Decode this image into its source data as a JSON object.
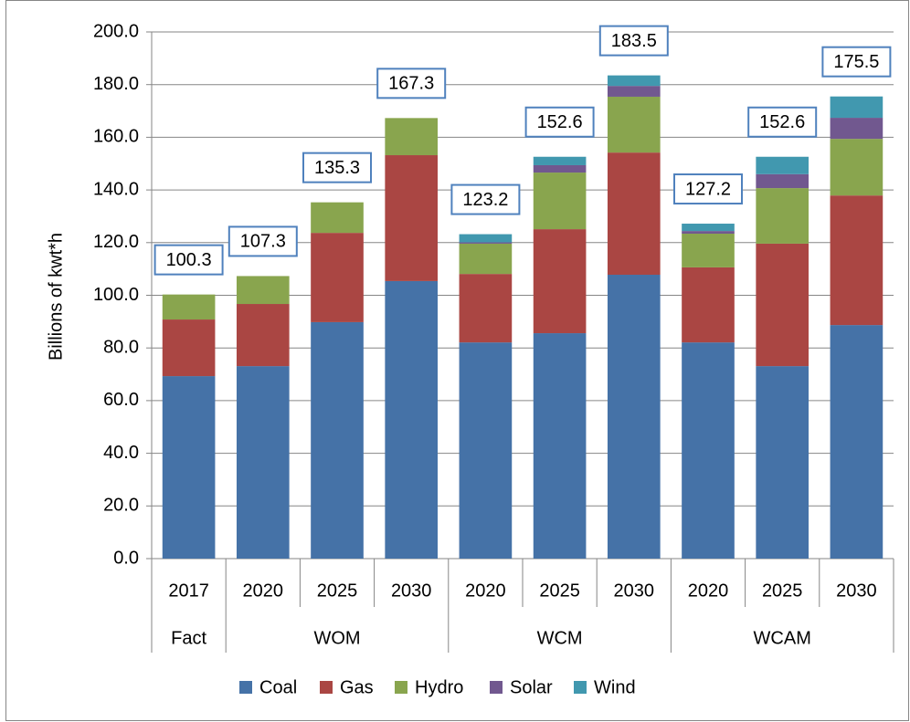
{
  "chart_data": {
    "type": "bar",
    "stacked": true,
    "y_label": "Billions of kwt*h",
    "groups": [
      {
        "name": "Fact",
        "categories": [
          "2017"
        ]
      },
      {
        "name": "WOM",
        "categories": [
          "2020",
          "2025",
          "2030"
        ]
      },
      {
        "name": "WCM",
        "categories": [
          "2020",
          "2025",
          "2030"
        ]
      },
      {
        "name": "WCAM",
        "categories": [
          "2020",
          "2025",
          "2030"
        ]
      }
    ],
    "series": [
      {
        "name": "Coal",
        "color": "#4572a7",
        "values": [
          69.3,
          73.1,
          89.8,
          105.4,
          82.1,
          85.6,
          107.8,
          82.1,
          73.1,
          88.7
        ]
      },
      {
        "name": "Gas",
        "color": "#aa4643",
        "values": [
          21.5,
          23.6,
          33.9,
          47.8,
          26.0,
          39.5,
          46.4,
          28.5,
          46.5,
          49.2
        ]
      },
      {
        "name": "Hydro",
        "color": "#89a54e",
        "values": [
          9.5,
          10.6,
          11.6,
          14.1,
          11.5,
          21.5,
          21.2,
          12.8,
          21.1,
          21.5
        ]
      },
      {
        "name": "Solar",
        "color": "#71588f",
        "values": [
          0,
          0,
          0,
          0,
          0.5,
          2.8,
          4.1,
          1.0,
          5.3,
          8.0
        ]
      },
      {
        "name": "Wind",
        "color": "#4198af",
        "values": [
          0,
          0,
          0,
          0,
          3.1,
          3.2,
          4.0,
          2.8,
          6.6,
          8.1
        ]
      }
    ],
    "totals": [
      100.3,
      107.3,
      135.3,
      167.3,
      123.2,
      152.6,
      183.5,
      127.2,
      152.6,
      175.5
    ],
    "ylim": [
      0,
      200
    ],
    "yticks": [
      {
        "value": 0,
        "label": "0.0"
      },
      {
        "value": 20,
        "label": "20.0"
      },
      {
        "value": 40,
        "label": "40.0"
      },
      {
        "value": 60,
        "label": "60.0"
      },
      {
        "value": 80,
        "label": "80.0"
      },
      {
        "value": 100,
        "label": "100.0"
      },
      {
        "value": 120,
        "label": "120.0"
      },
      {
        "value": 140,
        "label": "140.0"
      },
      {
        "value": 160,
        "label": "160.0"
      },
      {
        "value": 180,
        "label": "180.0"
      },
      {
        "value": 200,
        "label": "200.0"
      }
    ],
    "grid": true,
    "legend": "bottom"
  }
}
